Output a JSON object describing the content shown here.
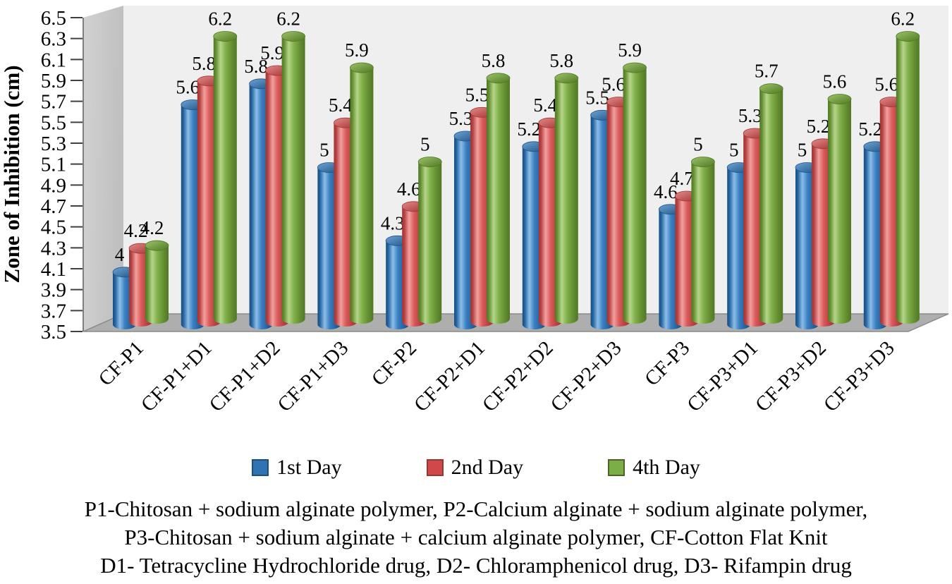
{
  "chart_data": {
    "type": "bar",
    "bar_shape": "cylinder-3d",
    "grid": false,
    "legend_position": "bottom",
    "ylabel": "Zone of Inhibition (cm)",
    "ylim": [
      3.5,
      6.5
    ],
    "ytick_step": 0.2,
    "categories": [
      "CF-P1",
      "CF-P1+D1",
      "CF-P1+D2",
      "CF-P1+D3",
      "CF-P2",
      "CF-P2+D1",
      "CF-P2+D2",
      "CF-P2+D3",
      "CF-P3",
      "CF-P3+D1",
      "CF-P3+D2",
      "CF-P3+D3"
    ],
    "series": [
      {
        "name": "1st Day",
        "swatch": "#2E74B5",
        "swatch_border": "#1F4E79",
        "body": {
          "light": "#8CBEE8",
          "mid": "#3A7FC1",
          "dark": "#2263A0",
          "darker": "#174E80"
        },
        "cap": {
          "light": "#6FA3D6",
          "dark": "#1F5586"
        },
        "values": [
          4,
          5.6,
          5.8,
          5,
          4.3,
          5.3,
          5.2,
          5.5,
          4.6,
          5,
          5,
          5.2
        ]
      },
      {
        "name": "2nd Day",
        "swatch": "#D04949",
        "swatch_border": "#953735",
        "body": {
          "light": "#F2A0A0",
          "mid": "#DA5A5A",
          "dark": "#B74040",
          "darker": "#9E3636"
        },
        "cap": {
          "light": "#E68989",
          "dark": "#A33737"
        },
        "values": [
          4.2,
          5.8,
          5.9,
          5.4,
          4.6,
          5.5,
          5.4,
          5.6,
          4.7,
          5.3,
          5.2,
          5.6
        ]
      },
      {
        "name": "4th Day",
        "swatch": "#7BAE46",
        "swatch_border": "#4F6228",
        "body": {
          "light": "#B5D589",
          "mid": "#81B04A",
          "dark": "#648F31",
          "darker": "#507726"
        },
        "cap": {
          "light": "#9DC369",
          "dark": "#4F7A24"
        },
        "values": [
          4.2,
          6.2,
          6.2,
          5.9,
          5,
          5.8,
          5.8,
          5.9,
          5,
          5.7,
          5.6,
          6.2
        ]
      }
    ],
    "wall_colors": {
      "back": "#EFEFEF",
      "side": "#C8C8C8",
      "floor": "#AEAEAE",
      "floor_edge": "#8A8A8A",
      "axis": "#7F7F7F",
      "tick": "#404040"
    }
  },
  "footnote": [
    "P1-Chitosan + sodium alginate polymer, P2-Calcium alginate + sodium alginate polymer,",
    "P3-Chitosan + sodium alginate + calcium alginate polymer, CF-Cotton Flat Knit",
    "D1- Tetracycline Hydrochloride drug, D2- Chloramphenicol drug, D3- Rifampin drug"
  ]
}
